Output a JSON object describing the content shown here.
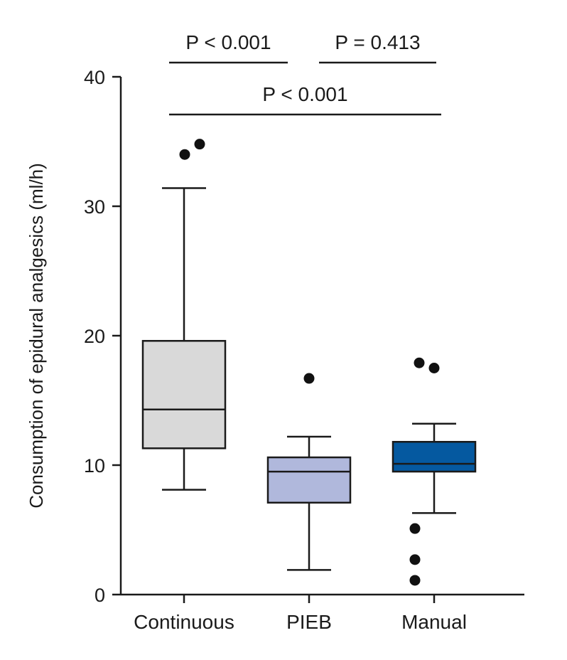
{
  "chart_data": {
    "type": "box",
    "ylabel": "Consumption of epidural analgesics (ml/h)",
    "xlabel": "",
    "ylim": [
      0,
      40
    ],
    "yticks": [
      0,
      10,
      20,
      30,
      40
    ],
    "categories": [
      "Continuous",
      "PIEB",
      "Manual"
    ],
    "boxes": [
      {
        "name": "Continuous",
        "whisker_low": 8.1,
        "q1": 11.3,
        "median": 14.3,
        "q3": 19.6,
        "whisker_high": 31.4,
        "outliers": [
          34.0,
          34.8
        ],
        "color": "#d9d9d9"
      },
      {
        "name": "PIEB",
        "whisker_low": 1.9,
        "q1": 7.1,
        "median": 9.5,
        "q3": 10.6,
        "whisker_high": 12.2,
        "outliers": [
          16.7
        ],
        "color": "#b0b8dc"
      },
      {
        "name": "Manual",
        "whisker_low": 6.3,
        "q1": 9.5,
        "median": 10.1,
        "q3": 11.8,
        "whisker_high": 13.2,
        "outliers": [
          1.1,
          2.7,
          5.1,
          17.5,
          17.9
        ],
        "color": "#0559a0"
      }
    ],
    "comparisons": [
      {
        "from": 0,
        "to": 1,
        "label": "P < 0.001",
        "level": 2
      },
      {
        "from": 1,
        "to": 2,
        "label": "P = 0.413",
        "level": 2
      },
      {
        "from": 0,
        "to": 2,
        "label": "P < 0.001",
        "level": 1
      }
    ]
  }
}
